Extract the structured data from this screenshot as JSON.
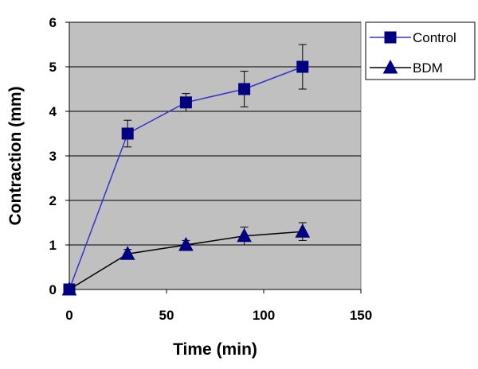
{
  "chart_data": {
    "type": "line",
    "xlabel": "Time (min)",
    "ylabel": "Contraction (mm)",
    "xlim": [
      0,
      150
    ],
    "ylim": [
      0,
      6
    ],
    "xticks": [
      0,
      50,
      100,
      150
    ],
    "yticks": [
      0,
      1,
      2,
      3,
      4,
      5,
      6
    ],
    "grid": "horizontal",
    "legend_position": "right",
    "background": "#c0c0c0",
    "series": [
      {
        "name": "Control",
        "marker": "square",
        "line_color": "#3333cc",
        "marker_color": "#000080",
        "x": [
          0,
          30,
          60,
          90,
          120
        ],
        "y": [
          0,
          3.5,
          4.2,
          4.5,
          5.0
        ],
        "error": [
          0,
          0.3,
          0.2,
          0.4,
          0.5
        ]
      },
      {
        "name": "BDM",
        "marker": "triangle",
        "line_color": "#000000",
        "marker_color": "#000080",
        "x": [
          0,
          30,
          60,
          90,
          120
        ],
        "y": [
          0,
          0.8,
          1.0,
          1.2,
          1.3
        ],
        "error": [
          0,
          0.1,
          0.1,
          0.2,
          0.2
        ]
      }
    ]
  }
}
